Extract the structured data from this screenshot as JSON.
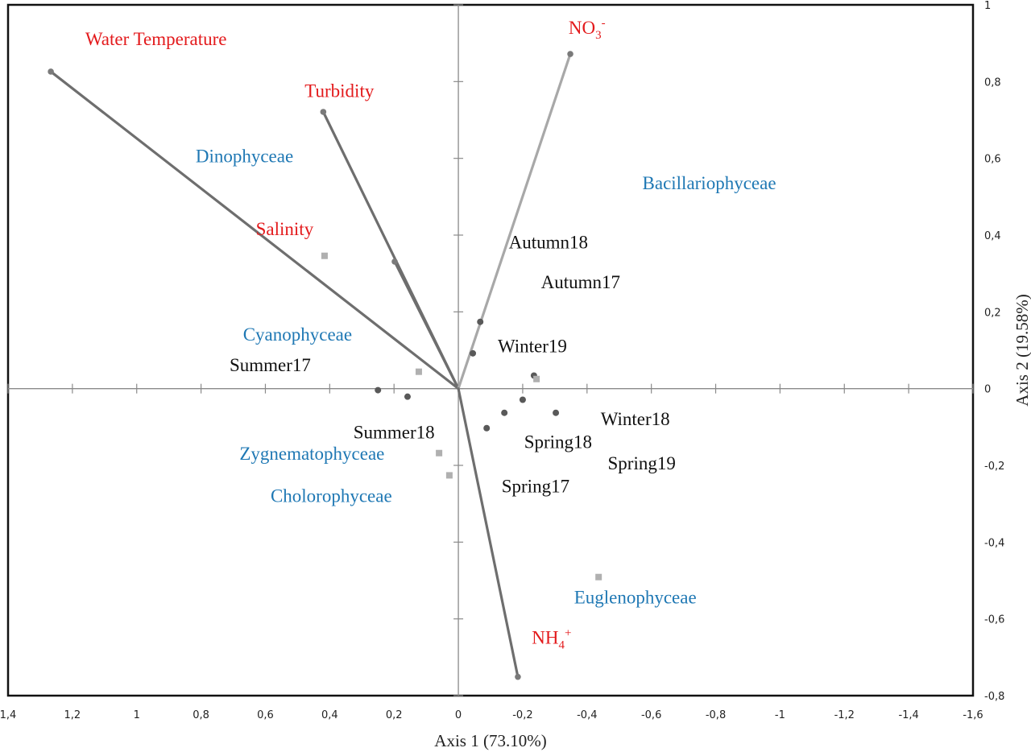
{
  "chart_data": {
    "type": "scatter",
    "subtype": "biplot",
    "title": "",
    "xlabel": "Axis 1 (73.10%)",
    "ylabel": "Axis 2 (19.58%)",
    "xlim": [
      1.4,
      -1.6
    ],
    "ylim": [
      -0.8,
      1.0
    ],
    "x_reversed": true,
    "x_ticks": [
      1.4,
      1.2,
      1.0,
      0.8,
      0.6,
      0.4,
      0.2,
      0,
      -0.2,
      -0.4,
      -0.6,
      -0.8,
      -1.0,
      -1.2,
      -1.4,
      -1.6
    ],
    "x_tick_labels": [
      "1,4",
      "1,2",
      "1",
      "0,8",
      "0,6",
      "0,4",
      "0,2",
      "0",
      "-0,2",
      "-0,4",
      "-0,6",
      "-0,8",
      "-1",
      "-1,2",
      "-1,4",
      "-1,6"
    ],
    "y_ticks": [
      1.0,
      0.8,
      0.6,
      0.4,
      0.2,
      0,
      -0.2,
      -0.4,
      -0.6,
      -0.8
    ],
    "y_tick_labels": [
      "1",
      "0,8",
      "0,6",
      "0,4",
      "0,2",
      "0",
      "-0,2",
      "-0,4",
      "-0,6",
      "-0,8"
    ],
    "y_axis_side": "right",
    "grid": false,
    "colors": {
      "environment": "#e31a1c",
      "species": "#1f78b4",
      "site": "#111111",
      "vector_dark": "#6e6e6e",
      "vector_light": "#a8a8a8",
      "site_marker": "#595959",
      "species_marker": "#b0b0b0"
    },
    "vectors": [
      {
        "name": "Water Temperature",
        "x": 1.267,
        "y": 0.826,
        "shade": "dark"
      },
      {
        "name": "Turbidity",
        "x": 0.42,
        "y": 0.721,
        "shade": "dark"
      },
      {
        "name": "Salinity",
        "x": 0.198,
        "y": 0.331,
        "shade": "dark"
      },
      {
        "name": "NO3-",
        "x": -0.348,
        "y": 0.872,
        "shade": "light"
      },
      {
        "name": "NH4+",
        "x": -0.185,
        "y": -0.751,
        "shade": "dark"
      }
    ],
    "site_points": [
      {
        "x": -0.068,
        "y": 0.174
      },
      {
        "x": -0.045,
        "y": 0.092
      },
      {
        "x": -0.235,
        "y": 0.034
      },
      {
        "x": 0.25,
        "y": -0.004
      },
      {
        "x": 0.158,
        "y": -0.021
      },
      {
        "x": -0.2,
        "y": -0.029
      },
      {
        "x": -0.143,
        "y": -0.063
      },
      {
        "x": -0.303,
        "y": -0.063
      },
      {
        "x": -0.088,
        "y": -0.103
      }
    ],
    "species_points": [
      {
        "x": 0.416,
        "y": 0.346
      },
      {
        "x": 0.123,
        "y": 0.044
      },
      {
        "x": -0.243,
        "y": 0.025
      },
      {
        "x": 0.06,
        "y": -0.168
      },
      {
        "x": 0.028,
        "y": -0.226
      },
      {
        "x": -0.436,
        "y": -0.491
      }
    ],
    "labels": [
      {
        "text": "Water Temperature",
        "kind": "environment",
        "x": 0.94,
        "y": 0.895
      },
      {
        "text": "Turbidity",
        "kind": "environment",
        "x": 0.37,
        "y": 0.76
      },
      {
        "text": "Salinity",
        "kind": "environment",
        "x": 0.54,
        "y": 0.4
      },
      {
        "text": "NO3",
        "sub": "3",
        "sup": "-",
        "kind": "environment",
        "x": -0.4,
        "y": 0.925
      },
      {
        "text": "NH4",
        "sub": "4",
        "sup": "+",
        "kind": "environment",
        "x": -0.29,
        "y": -0.665
      },
      {
        "text": "Dinophyceae",
        "kind": "species",
        "x": 0.665,
        "y": 0.59
      },
      {
        "text": "Bacillariophyceae",
        "kind": "species",
        "x": -0.78,
        "y": 0.52
      },
      {
        "text": "Cyanophyceae",
        "kind": "species",
        "x": 0.5,
        "y": 0.125
      },
      {
        "text": "Zygnematophyceae",
        "kind": "species",
        "x": 0.455,
        "y": -0.185
      },
      {
        "text": "Cholorophyceae",
        "kind": "species",
        "x": 0.395,
        "y": -0.295
      },
      {
        "text": "Euglenophyceae",
        "kind": "species",
        "x": -0.55,
        "y": -0.56
      },
      {
        "text": "Autumn18",
        "kind": "site",
        "x": -0.28,
        "y": 0.365
      },
      {
        "text": "Autumn17",
        "kind": "site",
        "x": -0.38,
        "y": 0.262
      },
      {
        "text": "Winter19",
        "kind": "site",
        "x": -0.23,
        "y": 0.095
      },
      {
        "text": "Summer17",
        "kind": "site",
        "x": 0.585,
        "y": 0.045
      },
      {
        "text": "Winter18",
        "kind": "site",
        "x": -0.55,
        "y": -0.095
      },
      {
        "text": "Summer18",
        "kind": "site",
        "x": 0.2,
        "y": -0.13
      },
      {
        "text": "Spring18",
        "kind": "site",
        "x": -0.31,
        "y": -0.155
      },
      {
        "text": "Spring19",
        "kind": "site",
        "x": -0.57,
        "y": -0.21
      },
      {
        "text": "Spring17",
        "kind": "site",
        "x": -0.24,
        "y": -0.27
      }
    ]
  }
}
